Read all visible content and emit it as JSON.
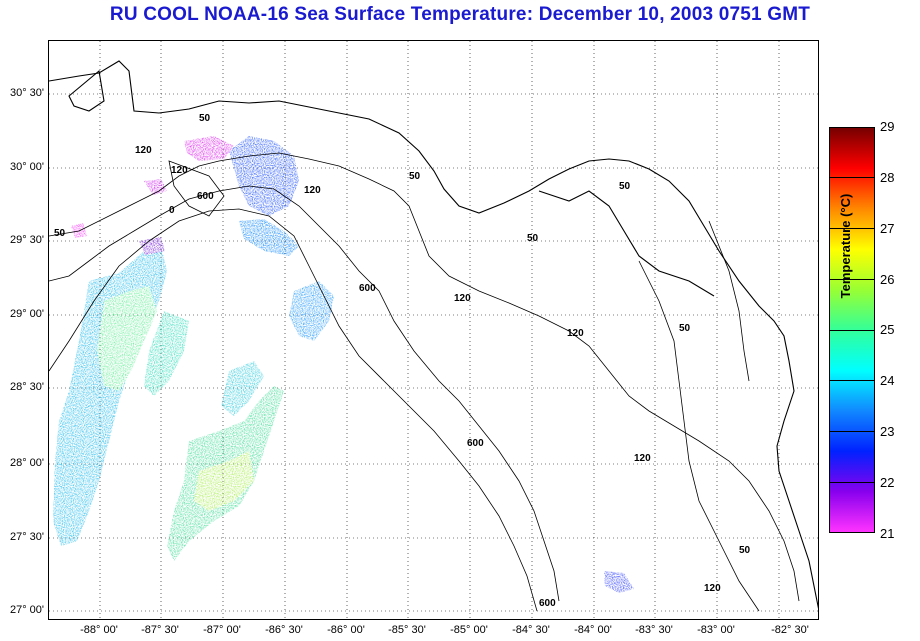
{
  "title": "RU COOL  NOAA-16  Sea Surface Temperature:  December 10, 2003 0751 GMT",
  "map": {
    "lon_range": [
      -88.25,
      -82.0
    ],
    "lat_range": [
      26.95,
      30.9
    ],
    "lat_ticks": [
      "30° 30'",
      "30° 00'",
      "29° 30'",
      "29° 00'",
      "28° 30'",
      "28° 00'",
      "27° 30'",
      "27° 00'"
    ],
    "lon_ticks": [
      "-88° 00'",
      "-87° 30'",
      "-87° 00'",
      "-86° 30'",
      "-86° 00'",
      "-85° 30'",
      "-85° 00'",
      "-84° 30'",
      "-84° 00'",
      "-83° 30'",
      "-83° 00'",
      "-82° 30'"
    ],
    "contour_labels": {
      "c1": "50",
      "c2": "120",
      "c3": "120",
      "c4": "600",
      "c5": "50",
      "c6": "120",
      "c7": "600",
      "c8": "50",
      "c9": "50",
      "c10": "50",
      "c11": "120",
      "c12": "120",
      "c13": "600",
      "c14": "120",
      "c15": "50",
      "c16": "120",
      "c17": "600",
      "c18": "50",
      "c19": "0"
    }
  },
  "colorbar": {
    "label": "Temperature (°C)",
    "ticks": [
      "29",
      "28",
      "27",
      "26",
      "25",
      "24",
      "23",
      "22",
      "21"
    ],
    "range": [
      21,
      29
    ],
    "colors": [
      "#ff33ff",
      "#8800ee",
      "#0022ff",
      "#1188ff",
      "#00ffff",
      "#33ff99",
      "#99ff33",
      "#ffff00",
      "#ff8800",
      "#ff0000",
      "#770000"
    ]
  }
}
